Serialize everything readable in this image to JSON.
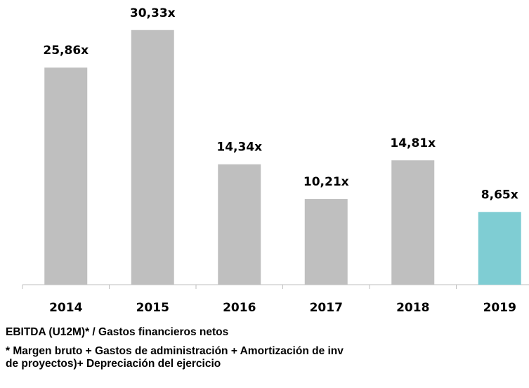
{
  "chart_data": {
    "type": "bar",
    "categories": [
      "2014",
      "2015",
      "2016",
      "2017",
      "2018",
      "2019"
    ],
    "values": [
      25.86,
      30.33,
      14.34,
      10.21,
      14.81,
      8.65
    ],
    "value_labels": [
      "25,86x",
      "30,33x",
      "14,34x",
      "10,21x",
      "14,81x",
      "8,65x"
    ],
    "colors": [
      "#bfbfbf",
      "#bfbfbf",
      "#bfbfbf",
      "#bfbfbf",
      "#bfbfbf",
      "#7fcdd3"
    ],
    "ylim": [
      0,
      35
    ],
    "title": "EBITDA (U12M)* / Gastos financieros netos",
    "footnote": [
      "* Margen bruto + Gastos de administración + Amortización de inv",
      "de proyectos)+ Depreciación del ejercicio"
    ]
  }
}
